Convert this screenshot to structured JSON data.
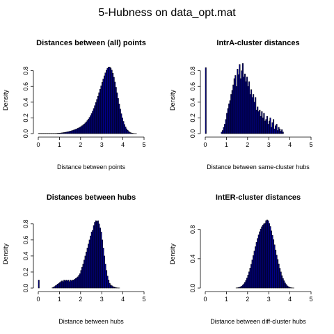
{
  "title": "5-Hubness on data_opt.mat",
  "chart_data": [
    {
      "type": "bar",
      "title": "Distances between (all) points",
      "xlabel": "Distance between points",
      "ylabel": "Density",
      "xlim": [
        0,
        5
      ],
      "ylim": [
        0,
        0.85
      ],
      "xticks": [
        0,
        1,
        2,
        3,
        4,
        5
      ],
      "yticks": [
        0.0,
        0.2,
        0.4,
        0.6,
        0.8
      ],
      "bin_width": 0.05,
      "bins_start": 0.0,
      "values": [
        0.003,
        0.003,
        0.003,
        0.003,
        0.003,
        0.003,
        0.003,
        0.003,
        0.003,
        0.003,
        0.003,
        0.003,
        0.003,
        0.003,
        0.003,
        0.003,
        0.003,
        0.004,
        0.005,
        0.006,
        0.007,
        0.008,
        0.01,
        0.012,
        0.014,
        0.016,
        0.019,
        0.022,
        0.025,
        0.028,
        0.032,
        0.036,
        0.04,
        0.045,
        0.05,
        0.055,
        0.061,
        0.067,
        0.074,
        0.081,
        0.09,
        0.1,
        0.11,
        0.122,
        0.135,
        0.15,
        0.166,
        0.185,
        0.206,
        0.23,
        0.257,
        0.287,
        0.32,
        0.356,
        0.395,
        0.435,
        0.477,
        0.52,
        0.564,
        0.608,
        0.652,
        0.694,
        0.735,
        0.773,
        0.806,
        0.832,
        0.846,
        0.848,
        0.835,
        0.808,
        0.768,
        0.717,
        0.656,
        0.589,
        0.519,
        0.448,
        0.378,
        0.313,
        0.253,
        0.2,
        0.155,
        0.117,
        0.086,
        0.061,
        0.042,
        0.028,
        0.018,
        0.011,
        0.007,
        0.004,
        0.002,
        0.001,
        0.001,
        0.0,
        0.0,
        0.0,
        0.0,
        0.0,
        0.0,
        0.0
      ]
    },
    {
      "type": "bar",
      "title": "IntrA-cluster distances",
      "xlabel": "Distance between same-cluster hubs",
      "ylabel": "Density",
      "xlim": [
        0,
        5
      ],
      "ylim": [
        0,
        0.85
      ],
      "xticks": [
        0,
        1,
        2,
        3,
        4,
        5
      ],
      "yticks": [
        0.0,
        0.2,
        0.4,
        0.6,
        0.8
      ],
      "bin_width": 0.05,
      "bins_start": 0.0,
      "values": [
        0.84,
        0.0,
        0.0,
        0.0,
        0.0,
        0.0,
        0.0,
        0.0,
        0.0,
        0.0,
        0.0,
        0.0,
        0.0,
        0.0,
        0.0,
        0.02,
        0.04,
        0.08,
        0.12,
        0.18,
        0.26,
        0.32,
        0.38,
        0.42,
        0.5,
        0.55,
        0.62,
        0.7,
        0.74,
        0.6,
        0.82,
        0.75,
        0.88,
        0.7,
        0.8,
        0.9,
        0.72,
        0.76,
        0.66,
        0.72,
        0.6,
        0.66,
        0.5,
        0.56,
        0.46,
        0.5,
        0.4,
        0.46,
        0.3,
        0.34,
        0.28,
        0.3,
        0.22,
        0.28,
        0.2,
        0.26,
        0.16,
        0.18,
        0.22,
        0.12,
        0.16,
        0.2,
        0.08,
        0.14,
        0.18,
        0.06,
        0.1,
        0.12,
        0.04,
        0.08,
        0.06,
        0.03,
        0.05,
        0.02
      ]
    },
    {
      "type": "bar",
      "title": "Distances between hubs",
      "xlabel": "Distance between hubs",
      "ylabel": "Density",
      "xlim": [
        0,
        5
      ],
      "ylim": [
        0,
        0.85
      ],
      "xticks": [
        0,
        1,
        2,
        3,
        4,
        5
      ],
      "yticks": [
        0.0,
        0.2,
        0.4,
        0.6,
        0.8
      ],
      "bin_width": 0.05,
      "bins_start": 0.0,
      "values": [
        0.1,
        0.0,
        0.0,
        0.0,
        0.0,
        0.0,
        0.0,
        0.0,
        0.0,
        0.0,
        0.0,
        0.0,
        0.0,
        0.005,
        0.01,
        0.02,
        0.03,
        0.04,
        0.05,
        0.06,
        0.07,
        0.08,
        0.09,
        0.08,
        0.1,
        0.09,
        0.1,
        0.09,
        0.1,
        0.08,
        0.1,
        0.09,
        0.1,
        0.1,
        0.11,
        0.12,
        0.13,
        0.14,
        0.16,
        0.18,
        0.22,
        0.26,
        0.3,
        0.35,
        0.4,
        0.45,
        0.5,
        0.55,
        0.6,
        0.65,
        0.7,
        0.72,
        0.78,
        0.82,
        0.84,
        0.83,
        0.84,
        0.8,
        0.75,
        0.7,
        0.6,
        0.5,
        0.4,
        0.3,
        0.22,
        0.15,
        0.1,
        0.06,
        0.04,
        0.03,
        0.02,
        0.015,
        0.01,
        0.005,
        0.003,
        0.002,
        0.001,
        0.0,
        0.0,
        0.0,
        0.0,
        0.0,
        0.0,
        0.0,
        0.0,
        0.0,
        0.0,
        0.0,
        0.0,
        0.0,
        0.0,
        0.0,
        0.0,
        0.0,
        0.0,
        0.0,
        0.0,
        0.0,
        0.0,
        0.0
      ]
    },
    {
      "type": "bar",
      "title": "IntER-cluster distances",
      "xlabel": "Distance between diff-cluster hubs",
      "ylabel": "Density",
      "xlim": [
        0,
        5
      ],
      "ylim": [
        0,
        0.93
      ],
      "xticks": [
        0,
        1,
        2,
        3,
        4,
        5
      ],
      "yticks": [
        0.0,
        0.4,
        0.8
      ],
      "bin_width": 0.05,
      "bins_start": 0.0,
      "values": [
        0.0,
        0.0,
        0.0,
        0.0,
        0.0,
        0.0,
        0.0,
        0.0,
        0.0,
        0.0,
        0.0,
        0.0,
        0.0,
        0.0,
        0.0,
        0.0,
        0.0,
        0.0,
        0.0,
        0.0,
        0.0,
        0.0,
        0.0,
        0.0,
        0.0,
        0.0,
        0.0,
        0.0,
        0.0,
        0.002,
        0.004,
        0.008,
        0.012,
        0.018,
        0.027,
        0.04,
        0.057,
        0.078,
        0.105,
        0.138,
        0.177,
        0.222,
        0.272,
        0.326,
        0.384,
        0.444,
        0.505,
        0.565,
        0.623,
        0.677,
        0.726,
        0.769,
        0.806,
        0.836,
        0.86,
        0.876,
        0.885,
        0.92,
        0.93,
        0.92,
        0.88,
        0.84,
        0.78,
        0.72,
        0.66,
        0.59,
        0.52,
        0.45,
        0.39,
        0.33,
        0.27,
        0.22,
        0.17,
        0.13,
        0.1,
        0.07,
        0.05,
        0.03,
        0.02,
        0.012,
        0.007,
        0.004,
        0.002,
        0.001,
        0.0,
        0.0,
        0.0,
        0.0,
        0.0,
        0.0,
        0.0,
        0.0,
        0.0,
        0.0,
        0.0,
        0.0,
        0.0,
        0.0,
        0.0,
        0.0
      ]
    }
  ],
  "colors": {
    "bar_fill": "#00008b",
    "bar_edge": "#000000",
    "axis": "#000000",
    "background": "#ffffff"
  }
}
